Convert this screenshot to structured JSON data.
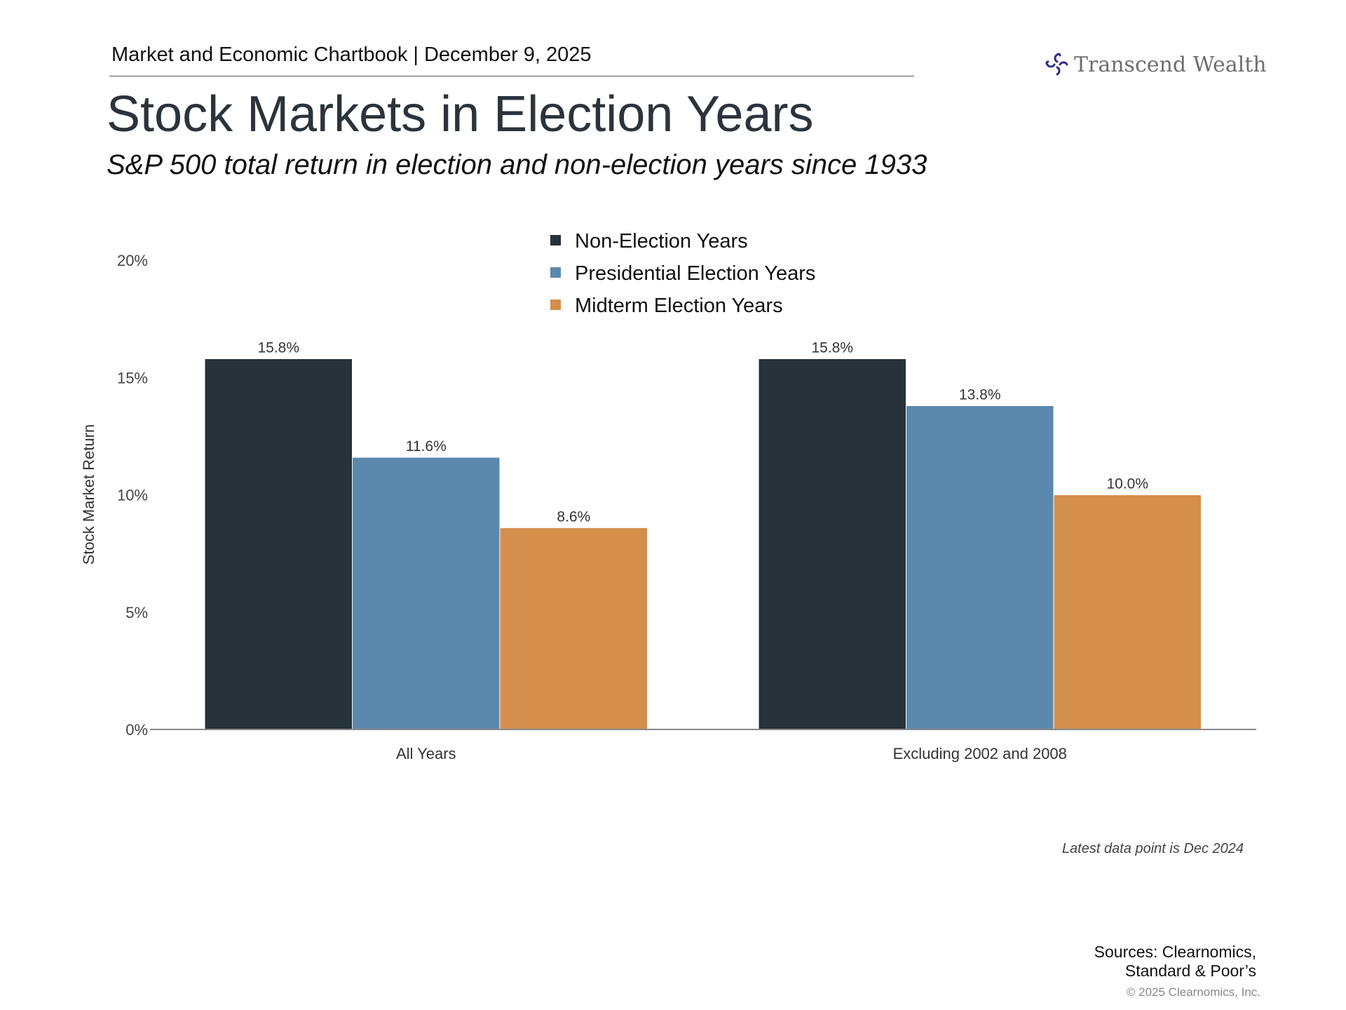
{
  "header": {
    "text": "Market and Economic Chartbook | December 9, 2025"
  },
  "logo": {
    "text": "Transcend Wealth"
  },
  "title": "Stock Markets in Election Years",
  "subtitle": "S&P 500 total return in election and non-election years since 1933",
  "chart_data": {
    "type": "bar",
    "categories": [
      "All Years",
      "Excluding 2002 and 2008"
    ],
    "series": [
      {
        "name": "Non-Election Years",
        "values": [
          15.8,
          15.8
        ],
        "labels": [
          "15.8%",
          "15.8%"
        ],
        "color": "#27323a"
      },
      {
        "name": "Presidential Election Years",
        "values": [
          11.6,
          13.8
        ],
        "labels": [
          "11.6%",
          "13.8%"
        ],
        "color": "#5b89ae"
      },
      {
        "name": "Midterm Election Years",
        "values": [
          8.6,
          10.0
        ],
        "labels": [
          "8.6%",
          "10.0%"
        ],
        "color": "#d48f4c"
      }
    ],
    "ylabel": "Stock Market Return",
    "ylim": [
      0,
      20
    ],
    "yticks": [
      0,
      5,
      10,
      15,
      20
    ],
    "ytick_labels": [
      "0%",
      "5%",
      "10%",
      "15%",
      "20%"
    ],
    "legend": "top-center",
    "grid": false
  },
  "footer": {
    "note": "Latest data point is Dec 2024",
    "sources_line1": "Sources: Clearnomics,",
    "sources_line2": "Standard & Poor’s",
    "copyright": "© 2025 Clearnomics, Inc."
  }
}
